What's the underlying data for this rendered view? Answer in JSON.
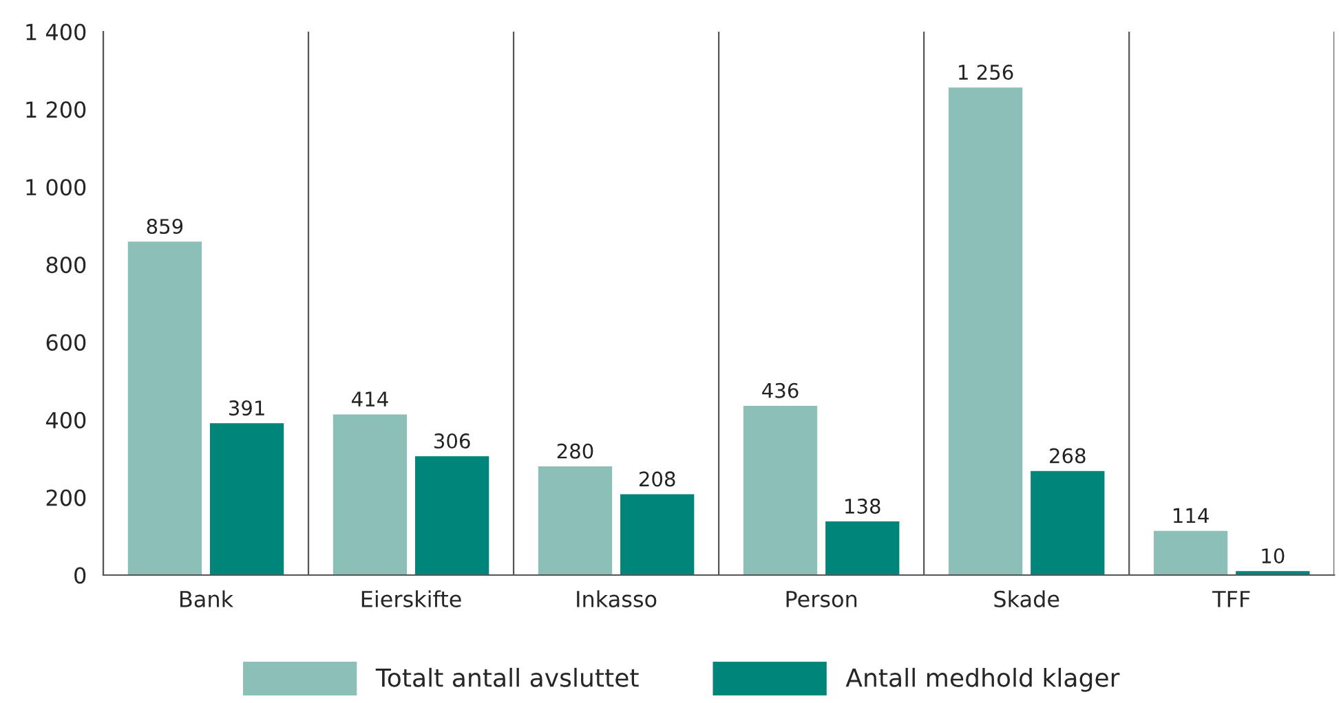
{
  "chart_data": {
    "type": "bar",
    "categories": [
      "Bank",
      "Eierskifte",
      "Inkasso",
      "Person",
      "Skade",
      "TFF"
    ],
    "series": [
      {
        "name": "Totalt antall avsluttet",
        "color": "#8dbfb9",
        "values": [
          859,
          414,
          280,
          436,
          1256,
          114
        ],
        "value_labels": [
          "859",
          "414",
          "280",
          "436",
          "1 256",
          "114"
        ]
      },
      {
        "name": "Antall medhold klager",
        "color": "#00857a",
        "values": [
          391,
          306,
          208,
          138,
          268,
          10
        ],
        "value_labels": [
          "391",
          "306",
          "208",
          "138",
          "268",
          "10"
        ]
      }
    ],
    "ylim": [
      0,
      1400
    ],
    "yticks": [
      {
        "value": 0,
        "label": "0"
      },
      {
        "value": 200,
        "label": "200"
      },
      {
        "value": 400,
        "label": "400"
      },
      {
        "value": 600,
        "label": "600"
      },
      {
        "value": 800,
        "label": "800"
      },
      {
        "value": 1000,
        "label": "1 000"
      },
      {
        "value": 1200,
        "label": "1 200"
      },
      {
        "value": 1400,
        "label": "1 400"
      }
    ],
    "grid": "x",
    "legend": "bottom"
  }
}
